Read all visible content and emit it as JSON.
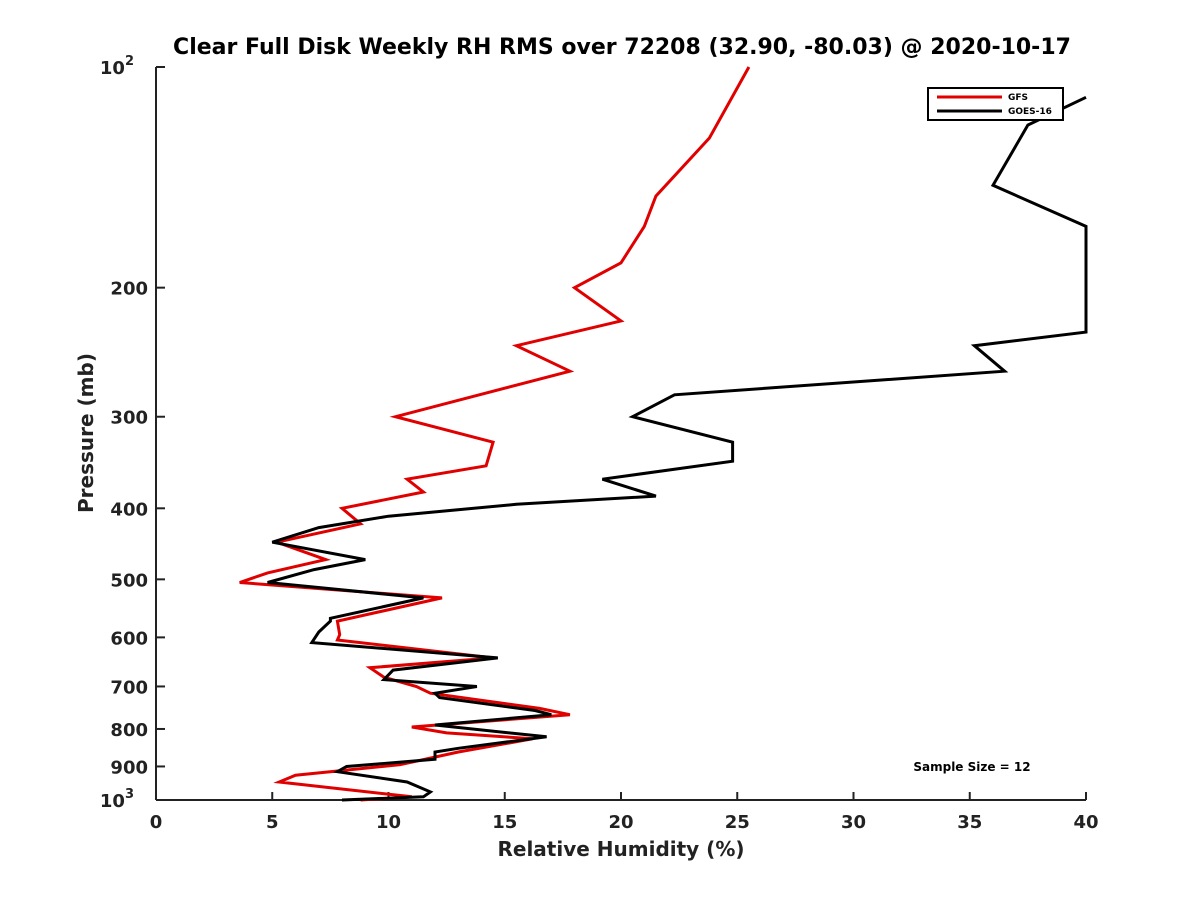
{
  "chart_data": {
    "type": "line",
    "title": "Clear Full Disk Weekly RH RMS over 72208 (32.90, -80.03) @ 2020-10-17",
    "xlabel": "Relative Humidity (%)",
    "ylabel": "Pressure (mb)",
    "xlim": [
      0,
      40
    ],
    "ylim": [
      100,
      1000
    ],
    "y_scale": "log",
    "y_reversed": true,
    "grid": false,
    "legend_position": "top-right",
    "note": "Sample Size = 12",
    "x_ticks": [
      {
        "value": 0,
        "label": "0"
      },
      {
        "value": 5,
        "label": "5"
      },
      {
        "value": 10,
        "label": "10"
      },
      {
        "value": 15,
        "label": "15"
      },
      {
        "value": 20,
        "label": "20"
      },
      {
        "value": 25,
        "label": "25"
      },
      {
        "value": 30,
        "label": "30"
      },
      {
        "value": 35,
        "label": "35"
      },
      {
        "value": 40,
        "label": "40"
      }
    ],
    "y_ticks": [
      {
        "value": 100,
        "label": "10",
        "exp": "2"
      },
      {
        "value": 200,
        "label": "200"
      },
      {
        "value": 300,
        "label": "300"
      },
      {
        "value": 400,
        "label": "400"
      },
      {
        "value": 500,
        "label": "500"
      },
      {
        "value": 600,
        "label": "600"
      },
      {
        "value": 700,
        "label": "700"
      },
      {
        "value": 800,
        "label": "800"
      },
      {
        "value": 900,
        "label": "900"
      },
      {
        "value": 1000,
        "label": "10",
        "exp": "3"
      }
    ],
    "series": [
      {
        "name": "GFS",
        "color": "#e00000",
        "points": [
          [
            25.5,
            100
          ],
          [
            23.8,
            125
          ],
          [
            21.5,
            150
          ],
          [
            21.0,
            165
          ],
          [
            20.0,
            185
          ],
          [
            18.0,
            200
          ],
          [
            20.0,
            222
          ],
          [
            15.5,
            240
          ],
          [
            17.8,
            260
          ],
          [
            10.3,
            300
          ],
          [
            14.5,
            325
          ],
          [
            14.2,
            350
          ],
          [
            10.8,
            365
          ],
          [
            11.5,
            380
          ],
          [
            8.0,
            400
          ],
          [
            8.8,
            420
          ],
          [
            5.2,
            445
          ],
          [
            7.3,
            470
          ],
          [
            4.8,
            490
          ],
          [
            3.6,
            505
          ],
          [
            12.3,
            530
          ],
          [
            7.8,
            570
          ],
          [
            7.9,
            595
          ],
          [
            7.8,
            605
          ],
          [
            14.5,
            640
          ],
          [
            9.2,
            660
          ],
          [
            9.8,
            680
          ],
          [
            11.2,
            700
          ],
          [
            11.8,
            715
          ],
          [
            16.5,
            750
          ],
          [
            17.8,
            765
          ],
          [
            11.0,
            795
          ],
          [
            12.5,
            810
          ],
          [
            16.2,
            825
          ],
          [
            13.0,
            860
          ],
          [
            10.5,
            895
          ],
          [
            6.0,
            925
          ],
          [
            5.3,
            945
          ],
          [
            11.0,
            990
          ],
          [
            8.8,
            1000
          ]
        ]
      },
      {
        "name": "GOES-16",
        "color": "#000000",
        "points": [
          [
            40.0,
            110
          ],
          [
            37.5,
            120
          ],
          [
            36.0,
            145
          ],
          [
            40.0,
            165
          ],
          [
            40.0,
            230
          ],
          [
            35.2,
            240
          ],
          [
            36.5,
            260
          ],
          [
            22.3,
            280
          ],
          [
            20.5,
            300
          ],
          [
            24.8,
            325
          ],
          [
            24.8,
            345
          ],
          [
            19.2,
            365
          ],
          [
            21.5,
            385
          ],
          [
            15.5,
            395
          ],
          [
            10.0,
            410
          ],
          [
            7.0,
            425
          ],
          [
            5.0,
            445
          ],
          [
            9.0,
            470
          ],
          [
            6.8,
            485
          ],
          [
            4.8,
            505
          ],
          [
            11.5,
            530
          ],
          [
            7.5,
            565
          ],
          [
            7.5,
            570
          ],
          [
            7.0,
            590
          ],
          [
            6.7,
            610
          ],
          [
            14.7,
            640
          ],
          [
            10.2,
            665
          ],
          [
            9.8,
            685
          ],
          [
            13.8,
            700
          ],
          [
            12.0,
            715
          ],
          [
            12.2,
            725
          ],
          [
            16.3,
            755
          ],
          [
            17.0,
            765
          ],
          [
            12.0,
            790
          ],
          [
            16.8,
            820
          ],
          [
            13.0,
            850
          ],
          [
            12.0,
            860
          ],
          [
            12.0,
            880
          ],
          [
            8.2,
            900
          ],
          [
            7.8,
            915
          ],
          [
            10.8,
            945
          ],
          [
            11.8,
            975
          ],
          [
            11.5,
            990
          ],
          [
            8.0,
            1000
          ]
        ]
      }
    ]
  }
}
